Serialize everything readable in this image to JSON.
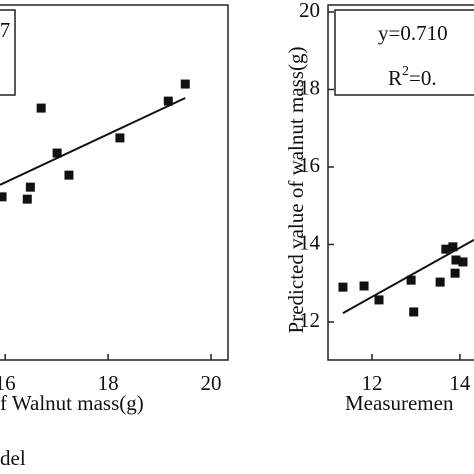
{
  "chart_data": [
    {
      "type": "scatter",
      "annotation": "7",
      "x_label": "f Walnut mass(g)",
      "x_label_line2": "del",
      "x": [
        15.94,
        16.43,
        16.49,
        16.7,
        17.01,
        17.24,
        18.23,
        19.17,
        19.5
      ],
      "values": [
        15.23,
        15.17,
        15.48,
        17.52,
        16.36,
        15.79,
        16.75,
        17.7,
        18.14
      ],
      "color": "#111111",
      "fit_line": {
        "x": [
          15.9,
          19.5
        ],
        "y": [
          15.54,
          17.78
        ]
      },
      "xlim": [
        15.9,
        20.33
      ],
      "ylim": [
        11.02,
        20.18
      ],
      "xticks": [
        16,
        18,
        20
      ]
    },
    {
      "type": "scatter",
      "annotation": "y=0.710",
      "annotation_line2": [
        "R",
        "2",
        "=0."
      ],
      "x_label": "Measuremen",
      "y_label": "Predicted value of walnut mass(g)",
      "x": [
        11.34,
        11.82,
        12.16,
        12.89,
        12.95,
        13.55,
        13.68,
        13.84,
        13.91,
        13.89,
        14.07
      ],
      "values": [
        12.9,
        12.93,
        12.57,
        13.08,
        12.26,
        13.03,
        13.88,
        13.94,
        13.6,
        13.26,
        13.55
      ],
      "color": "#111111",
      "fit_line": {
        "x": [
          11.34,
          14.32
        ],
        "y": [
          12.23,
          14.12
        ]
      },
      "xlim": [
        11.0,
        14.32
      ],
      "ylim": [
        11.02,
        20.18
      ],
      "xticks": [
        12,
        14
      ],
      "yticks": [
        12,
        14,
        16,
        18,
        20
      ]
    }
  ]
}
